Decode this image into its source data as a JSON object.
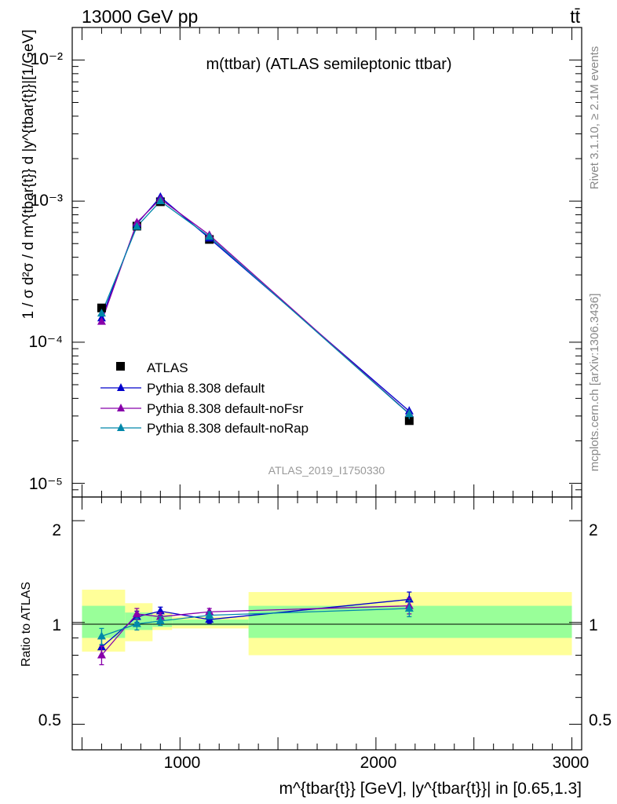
{
  "header": {
    "left": "13000 GeV pp",
    "right": "tt̄"
  },
  "side_labels": {
    "rivet": "Rivet 3.1.10, ≥ 2.1M events",
    "mcplots": "mcplots.cern.ch [arXiv:1306.3436]"
  },
  "chart_data": [
    {
      "type": "scatter",
      "panel": "main",
      "title": "m(ttbar) (ATLAS semileptonic ttbar)",
      "watermark": "ATLAS_2019_I1750330",
      "ylabel": "1 / σ d²σ / d m^{tbar{t}} d |y^{tbar{t}}|[1/GeV]",
      "yscale": "log",
      "ylim": [
        8e-06,
        0.017
      ],
      "xlim": [
        450,
        3050
      ],
      "y_tick_labels": [
        "10⁻⁵",
        "10⁻⁴",
        "10⁻³",
        "10⁻²"
      ],
      "legend_position": "bottom-left",
      "series": [
        {
          "name": "ATLAS",
          "marker": "square",
          "color": "#000000",
          "x": [
            600,
            780,
            900,
            1150,
            2170
          ],
          "y": [
            0.000175,
            0.000665,
            0.00099,
            0.000535,
            2.78e-05
          ]
        },
        {
          "name": "Pythia 8.308 default",
          "marker": "triangle",
          "color": "#0000cc",
          "x": [
            600,
            780,
            900,
            1150,
            2170
          ],
          "y": [
            0.000148,
            0.00069,
            0.00107,
            0.000545,
            3.25e-05
          ],
          "yerr": [
            6e-06,
            2.5e-05,
            3e-05,
            2e-05,
            2.5e-06
          ]
        },
        {
          "name": "Pythia 8.308 default-noFsr",
          "marker": "triangle",
          "color": "#8800aa",
          "x": [
            600,
            780,
            900,
            1150,
            2170
          ],
          "y": [
            0.00014,
            0.000705,
            0.001035,
            0.000575,
            3.12e-05
          ],
          "yerr": [
            6e-06,
            2.5e-05,
            3e-05,
            2e-05,
            2.5e-06
          ]
        },
        {
          "name": "Pythia 8.308 default-noRap",
          "marker": "triangle",
          "color": "#0088aa",
          "x": [
            600,
            780,
            900,
            1150,
            2170
          ],
          "y": [
            0.00016,
            0.00066,
            0.001,
            0.00056,
            3.1e-05
          ],
          "yerr": [
            6e-06,
            2.5e-05,
            3e-05,
            2e-05,
            2.5e-06
          ]
        }
      ]
    },
    {
      "type": "scatter",
      "panel": "ratio",
      "ylabel": "Ratio to ATLAS",
      "xlabel": "m^{tbar{t}} [GeV], |y^{tbar{t}}| in [0.65,1.3]",
      "yscale": "log",
      "ylim": [
        0.42,
        2.35
      ],
      "xlim": [
        450,
        3050
      ],
      "x_tick_labels": [
        "1000",
        "2000",
        "3000"
      ],
      "y_tick_labels": [
        "0.5",
        "1",
        "2"
      ],
      "bands": {
        "edges": [
          500,
          720,
          860,
          960,
          1350,
          3000
        ],
        "inner": [
          [
            0.9,
            1.12
          ],
          [
            0.95,
            1.07
          ],
          [
            0.97,
            1.05
          ],
          [
            0.98,
            1.02
          ],
          [
            0.9,
            1.12
          ]
        ],
        "outer": [
          [
            0.82,
            1.25
          ],
          [
            0.88,
            1.14
          ],
          [
            0.95,
            1.07
          ],
          [
            0.96,
            1.04
          ],
          [
            0.8,
            1.23
          ]
        ],
        "inner_color": "#99ff99",
        "outer_color": "#ffff99"
      },
      "series": [
        {
          "name": "Pythia 8.308 default",
          "color": "#0000cc",
          "x": [
            600,
            780,
            900,
            1150,
            2170
          ],
          "y": [
            0.845,
            1.04,
            1.08,
            1.02,
            1.17
          ],
          "yerr": [
            0.05,
            0.04,
            0.03,
            0.025,
            0.06
          ]
        },
        {
          "name": "Pythia 8.308 default-noFsr",
          "color": "#8800aa",
          "x": [
            600,
            780,
            900,
            1150,
            2170
          ],
          "y": [
            0.8,
            1.06,
            1.04,
            1.075,
            1.12
          ],
          "yerr": [
            0.05,
            0.04,
            0.03,
            0.025,
            0.06
          ]
        },
        {
          "name": "Pythia 8.308 default-noRap",
          "color": "#0088aa",
          "x": [
            600,
            780,
            900,
            1150,
            2170
          ],
          "y": [
            0.91,
            0.99,
            1.01,
            1.05,
            1.1
          ],
          "yerr": [
            0.05,
            0.04,
            0.03,
            0.025,
            0.06
          ]
        }
      ]
    }
  ]
}
